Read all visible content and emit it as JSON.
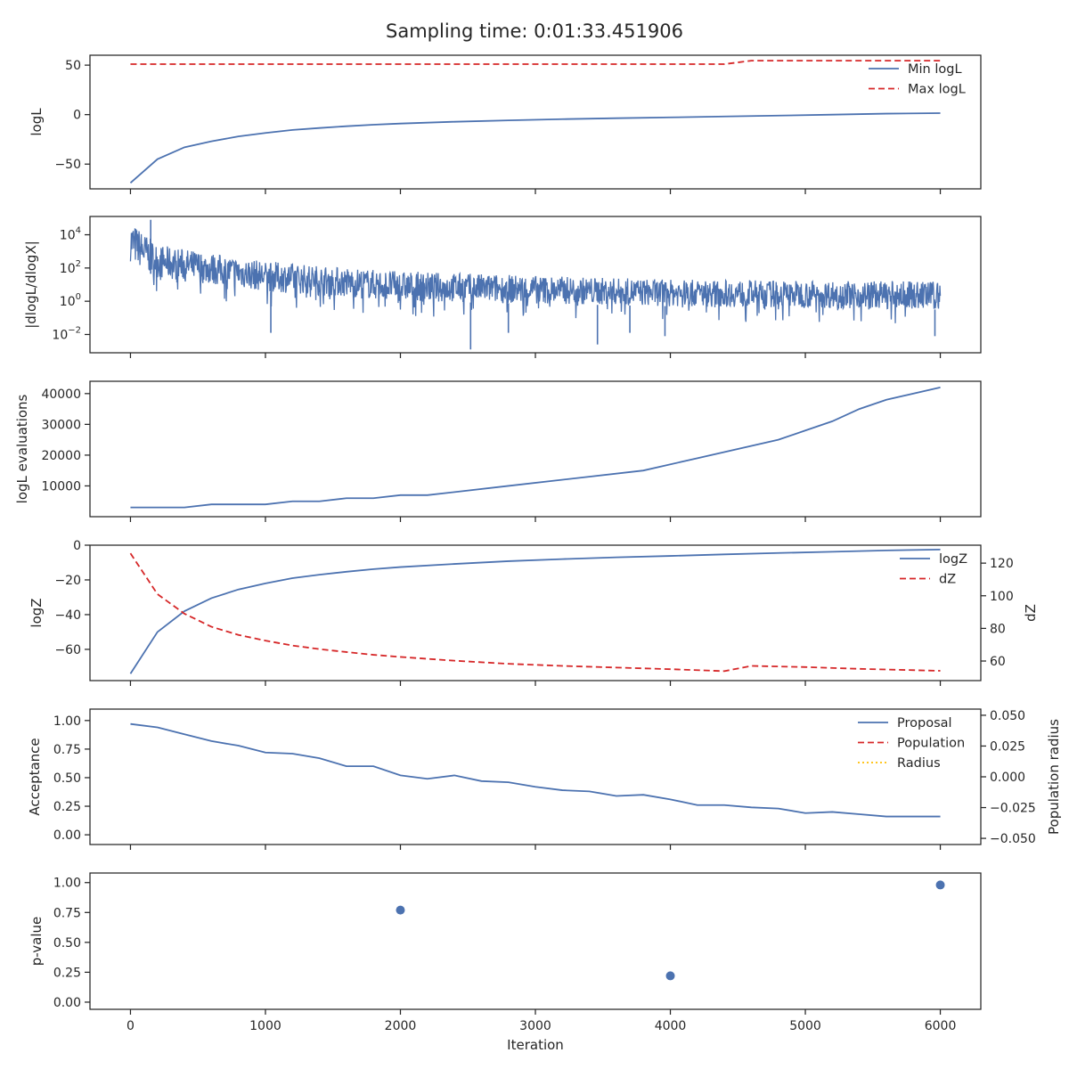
{
  "figure_title": "Sampling time: 0:01:33.451906",
  "colors": {
    "blue": "#4c72b0",
    "red": "#d62728",
    "gold": "#ffbf00",
    "axis": "#262626"
  },
  "chart_data": [
    {
      "id": "logl",
      "type": "line",
      "ylabel": "logL",
      "xlim": [
        -300,
        6300
      ],
      "ylim": [
        -75,
        60
      ],
      "yticks": [
        {
          "v": 50,
          "t": "50"
        },
        {
          "v": 0,
          "t": "0"
        },
        {
          "v": -50,
          "t": "−50"
        }
      ],
      "show_xticklabels": false,
      "legend": "top-right",
      "series": [
        {
          "name": "Min logL",
          "style": "solid",
          "color": "blue",
          "x": [
            0,
            200,
            400,
            600,
            800,
            1000,
            1200,
            1400,
            1600,
            1800,
            2000,
            2400,
            2800,
            3200,
            3600,
            4000,
            4400,
            4800,
            5200,
            5600,
            6000
          ],
          "y": [
            -69,
            -45,
            -33,
            -27,
            -22,
            -18.5,
            -15.5,
            -13.5,
            -11.7,
            -10.2,
            -9,
            -7.2,
            -5.8,
            -4.6,
            -3.6,
            -2.8,
            -1.9,
            -1,
            0,
            1,
            1.5
          ]
        },
        {
          "name": "Max logL",
          "style": "dashed",
          "color": "red",
          "x": [
            0,
            4400,
            4600,
            6000
          ],
          "y": [
            51,
            51,
            54.5,
            54.5
          ]
        }
      ]
    },
    {
      "id": "dlogl",
      "type": "line",
      "ylabel": "|dlogL/dlogX|",
      "xlim": [
        -300,
        6300
      ],
      "yscale": "log",
      "ylim_log10": [
        -3.1,
        5.1
      ],
      "yticks": [
        {
          "v": 4,
          "t": "10",
          "e": "4"
        },
        {
          "v": 2,
          "t": "10",
          "e": "2"
        },
        {
          "v": 0,
          "t": "10",
          "e": "0"
        },
        {
          "v": -2,
          "t": "10",
          "e": "−2"
        }
      ],
      "show_xticklabels": false,
      "series": [
        {
          "name": "",
          "style": "noisy",
          "color": "blue",
          "x_range": [
            0,
            6000
          ],
          "upper_log10": [
            {
              "x": 0,
              "y": 4.8
            },
            {
              "x": 200,
              "y": 3.4
            },
            {
              "x": 1000,
              "y": 2.4
            },
            {
              "x": 2000,
              "y": 1.8
            },
            {
              "x": 4000,
              "y": 1.3
            },
            {
              "x": 6000,
              "y": 1.2
            }
          ],
          "lower_log10": [
            {
              "x": 0,
              "y": 2.4
            },
            {
              "x": 200,
              "y": 1.4
            },
            {
              "x": 1000,
              "y": 0.6
            },
            {
              "x": 2000,
              "y": 0.0
            },
            {
              "x": 4000,
              "y": -0.3
            },
            {
              "x": 6000,
              "y": -0.5
            }
          ],
          "spikes": [
            {
              "x": 150,
              "y": 4.9
            },
            {
              "x": 1040,
              "y": -1.9
            },
            {
              "x": 2520,
              "y": -2.9
            },
            {
              "x": 2800,
              "y": -1.9
            },
            {
              "x": 3460,
              "y": -2.6
            },
            {
              "x": 3700,
              "y": -1.9
            },
            {
              "x": 3960,
              "y": -2.1
            },
            {
              "x": 5960,
              "y": -2.1
            }
          ]
        }
      ]
    },
    {
      "id": "evals",
      "type": "line",
      "ylabel": "logL evaluations",
      "xlim": [
        -300,
        6300
      ],
      "ylim": [
        0,
        44000
      ],
      "yticks": [
        {
          "v": 40000,
          "t": "40000"
        },
        {
          "v": 30000,
          "t": "30000"
        },
        {
          "v": 20000,
          "t": "20000"
        },
        {
          "v": 10000,
          "t": "10000"
        }
      ],
      "show_xticklabels": false,
      "series": [
        {
          "name": "",
          "style": "solid",
          "color": "blue",
          "x": [
            0,
            200,
            400,
            600,
            800,
            1000,
            1200,
            1400,
            1600,
            1800,
            2000,
            2200,
            2800,
            3800,
            4200,
            4800,
            5000,
            5200,
            5400,
            5600,
            6000
          ],
          "y": [
            3000,
            3000,
            3000,
            4000,
            4000,
            4000,
            5000,
            5000,
            6000,
            6000,
            7000,
            7000,
            10000,
            15000,
            19000,
            25000,
            28000,
            31000,
            35000,
            38000,
            42000
          ]
        }
      ]
    },
    {
      "id": "logz",
      "type": "line",
      "ylabel": "logZ",
      "ylabel2": "dZ",
      "xlim": [
        -300,
        6300
      ],
      "ylim": [
        -78,
        0
      ],
      "ylim2": [
        48,
        131
      ],
      "yticks": [
        {
          "v": 0,
          "t": "0"
        },
        {
          "v": -20,
          "t": "−20"
        },
        {
          "v": -40,
          "t": "−40"
        },
        {
          "v": -60,
          "t": "−60"
        }
      ],
      "yticks2": [
        {
          "v": 120,
          "t": "120"
        },
        {
          "v": 100,
          "t": "100"
        },
        {
          "v": 80,
          "t": "80"
        },
        {
          "v": 60,
          "t": "60"
        }
      ],
      "show_xticklabels": false,
      "legend": "top-right",
      "series": [
        {
          "name": "logZ",
          "style": "solid",
          "color": "blue",
          "axis": "left",
          "x": [
            0,
            200,
            400,
            600,
            800,
            1000,
            1200,
            1400,
            1600,
            1800,
            2000,
            2400,
            2800,
            3200,
            3600,
            4000,
            4400,
            4800,
            5200,
            5600,
            6000
          ],
          "y": [
            -74,
            -50,
            -38,
            -30.5,
            -25.5,
            -22,
            -19,
            -17,
            -15.3,
            -13.8,
            -12.6,
            -10.8,
            -9.2,
            -8,
            -7,
            -6.2,
            -5.3,
            -4.5,
            -3.8,
            -3,
            -2.5
          ]
        },
        {
          "name": "dZ",
          "style": "dashed",
          "color": "red",
          "axis": "right",
          "x": [
            0,
            200,
            400,
            600,
            800,
            1000,
            1200,
            1400,
            1600,
            1800,
            2000,
            2400,
            2800,
            3200,
            3600,
            4000,
            4400,
            4600,
            5000,
            5400,
            6000
          ],
          "y": [
            126,
            101,
            89,
            81,
            76,
            72.5,
            69.5,
            67.3,
            65.5,
            63.8,
            62.5,
            60.2,
            58.3,
            57,
            56,
            55,
            53.8,
            57,
            56.3,
            55.2,
            54
          ]
        }
      ]
    },
    {
      "id": "accept",
      "type": "line",
      "ylabel": "Acceptance",
      "ylabel2": "Population radius",
      "xlim": [
        -300,
        6300
      ],
      "ylim": [
        -0.085,
        1.1
      ],
      "ylim2": [
        -0.055,
        0.055
      ],
      "yticks": [
        {
          "v": 1.0,
          "t": "1.00"
        },
        {
          "v": 0.75,
          "t": "0.75"
        },
        {
          "v": 0.5,
          "t": "0.50"
        },
        {
          "v": 0.25,
          "t": "0.25"
        },
        {
          "v": 0.0,
          "t": "0.00"
        }
      ],
      "yticks2": [
        {
          "v": 0.05,
          "t": "0.050"
        },
        {
          "v": 0.025,
          "t": "0.025"
        },
        {
          "v": 0.0,
          "t": "0.000"
        },
        {
          "v": -0.025,
          "t": "−0.025"
        },
        {
          "v": -0.05,
          "t": "−0.050"
        }
      ],
      "show_xticklabels": false,
      "legend": "top-right",
      "series": [
        {
          "name": "Proposal",
          "style": "solid",
          "color": "blue",
          "axis": "left",
          "x": [
            0,
            200,
            400,
            600,
            800,
            1000,
            1200,
            1400,
            1600,
            1800,
            2000,
            2200,
            2400,
            2600,
            2800,
            3000,
            3200,
            3400,
            3600,
            3800,
            4000,
            4200,
            4400,
            4600,
            4800,
            5000,
            5200,
            5400,
            5600,
            5800,
            6000
          ],
          "y": [
            0.97,
            0.94,
            0.88,
            0.82,
            0.78,
            0.72,
            0.71,
            0.67,
            0.6,
            0.6,
            0.52,
            0.49,
            0.52,
            0.47,
            0.46,
            0.42,
            0.39,
            0.38,
            0.34,
            0.35,
            0.31,
            0.26,
            0.26,
            0.24,
            0.23,
            0.19,
            0.2,
            0.18,
            0.16,
            0.16,
            0.16
          ]
        },
        {
          "name": "Population",
          "style": "dashed",
          "color": "red",
          "axis": "right",
          "x": [],
          "y": []
        },
        {
          "name": "Radius",
          "style": "dotted",
          "color": "gold",
          "axis": "right",
          "x": [],
          "y": []
        }
      ]
    },
    {
      "id": "pvalue",
      "type": "scatter",
      "ylabel": "p-value",
      "xlabel": "Iteration",
      "xlim": [
        -300,
        6300
      ],
      "ylim": [
        -0.06,
        1.08
      ],
      "yticks": [
        {
          "v": 1.0,
          "t": "1.00"
        },
        {
          "v": 0.75,
          "t": "0.75"
        },
        {
          "v": 0.5,
          "t": "0.50"
        },
        {
          "v": 0.25,
          "t": "0.25"
        },
        {
          "v": 0.0,
          "t": "0.00"
        }
      ],
      "xticks": [
        {
          "v": 0,
          "t": "0"
        },
        {
          "v": 1000,
          "t": "1000"
        },
        {
          "v": 2000,
          "t": "2000"
        },
        {
          "v": 3000,
          "t": "3000"
        },
        {
          "v": 4000,
          "t": "4000"
        },
        {
          "v": 5000,
          "t": "5000"
        },
        {
          "v": 6000,
          "t": "6000"
        }
      ],
      "show_xticklabels": true,
      "series": [
        {
          "name": "",
          "style": "points",
          "color": "blue",
          "x": [
            2000,
            4000,
            6000
          ],
          "y": [
            0.77,
            0.22,
            0.98
          ]
        }
      ]
    }
  ]
}
